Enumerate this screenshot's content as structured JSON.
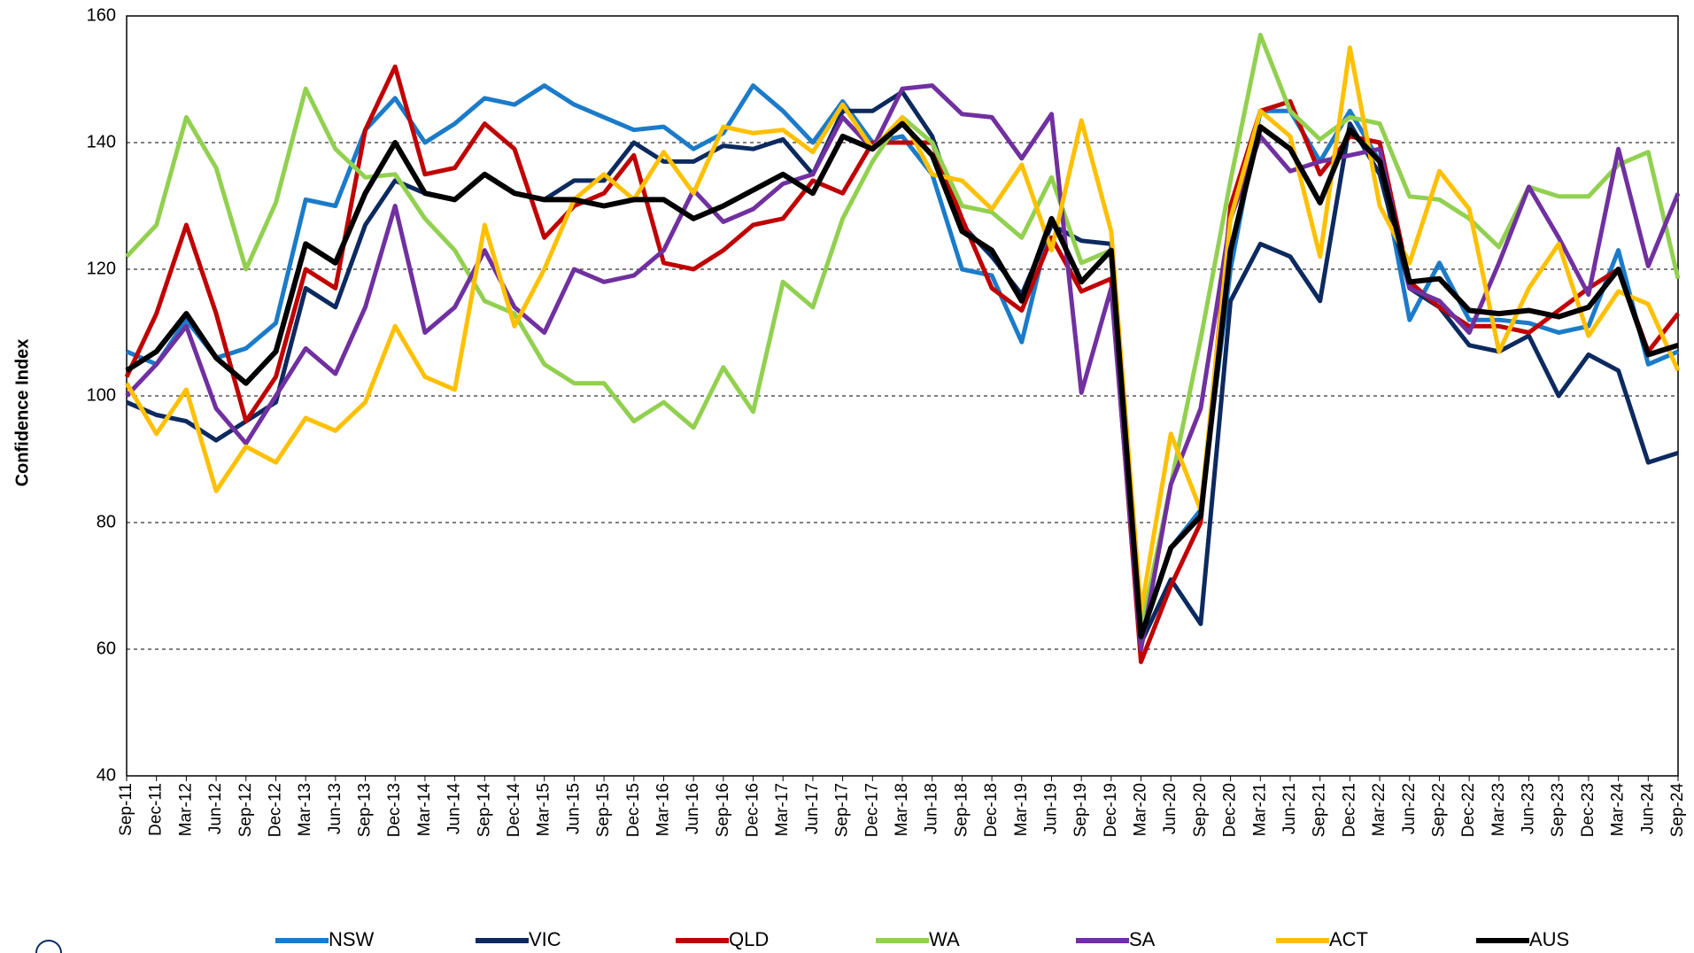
{
  "chart_data": {
    "type": "line",
    "y_label": "Confidence Index",
    "categories": [
      "Sep-11",
      "Dec-11",
      "Mar-12",
      "Jun-12",
      "Sep-12",
      "Dec-12",
      "Mar-13",
      "Jun-13",
      "Sep-13",
      "Dec-13",
      "Mar-14",
      "Jun-14",
      "Sep-14",
      "Dec-14",
      "Mar-15",
      "Jun-15",
      "Sep-15",
      "Dec-15",
      "Mar-16",
      "Jun-16",
      "Sep-16",
      "Dec-16",
      "Mar-17",
      "Jun-17",
      "Sep-17",
      "Dec-17",
      "Mar-18",
      "Jun-18",
      "Sep-18",
      "Dec-18",
      "Mar-19",
      "Jun-19",
      "Sep-19",
      "Dec-19",
      "Mar-20",
      "Jun-20",
      "Sep-20",
      "Dec-20",
      "Mar-21",
      "Jun-21",
      "Sep-21",
      "Dec-21",
      "Mar-22",
      "Jun-22",
      "Sep-22",
      "Dec-22",
      "Mar-23",
      "Jun-23",
      "Sep-23",
      "Dec-23",
      "Mar-24",
      "Jun-24",
      "Sep-24"
    ],
    "series": [
      {
        "name": "NSW",
        "color": "#1b7bc9",
        "values": [
          107,
          105,
          112,
          106,
          107.5,
          111.5,
          131,
          130,
          142,
          147,
          140,
          143,
          147,
          146,
          149,
          146,
          144,
          142,
          142.5,
          139,
          141.5,
          149,
          145,
          140,
          146.5,
          140,
          141,
          135,
          120,
          119,
          108.5,
          128,
          118,
          123,
          62,
          76,
          82,
          120,
          145,
          145,
          137,
          145,
          137,
          112,
          121,
          112,
          112,
          111.5,
          110,
          111,
          123,
          105,
          107
        ]
      },
      {
        "name": "VIC",
        "color": "#0c2a5f",
        "values": [
          99,
          97,
          96,
          93,
          96,
          99,
          117,
          114,
          127,
          134,
          132,
          131,
          135,
          132,
          131,
          134,
          134,
          140,
          137,
          137,
          139.5,
          139,
          140.5,
          135,
          145,
          145,
          148,
          141,
          127,
          122,
          116,
          127,
          124.5,
          124,
          61,
          71,
          64,
          115,
          124,
          122,
          115,
          143,
          135,
          117,
          114,
          108,
          107,
          109.5,
          100,
          106.5,
          104,
          89.5,
          91
        ]
      },
      {
        "name": "QLD",
        "color": "#c00000",
        "values": [
          103,
          113,
          127,
          113,
          96,
          103,
          120,
          117,
          142,
          152,
          135,
          136,
          143,
          139,
          125,
          130,
          132,
          138,
          121,
          120,
          123,
          127,
          128,
          134,
          132,
          140,
          140,
          140,
          128,
          117,
          113.5,
          125,
          116.5,
          118.5,
          58,
          70,
          80,
          130,
          145,
          146.5,
          135,
          141,
          140,
          118,
          114,
          111,
          111,
          110,
          113.5,
          117,
          120,
          107,
          113
        ]
      },
      {
        "name": "WA",
        "color": "#92d050",
        "values": [
          122,
          127,
          144,
          136,
          120,
          130.5,
          148.5,
          139,
          134.5,
          135,
          128,
          123,
          115,
          113,
          105,
          102,
          102,
          96,
          99,
          95,
          104.5,
          97.5,
          118,
          114,
          128,
          137,
          144,
          140,
          130,
          129,
          125,
          134.5,
          121,
          123,
          63,
          86,
          109,
          134,
          157,
          145,
          140.5,
          144,
          143,
          131.5,
          131,
          128,
          123.5,
          133,
          131.5,
          131.5,
          136.5,
          138.5,
          118.5
        ]
      },
      {
        "name": "SA",
        "color": "#7030a0",
        "values": [
          100,
          105,
          111,
          98,
          92.5,
          100,
          107.5,
          103.5,
          114,
          130,
          110,
          114,
          123,
          114,
          110,
          120,
          118,
          119,
          123,
          132.5,
          127.5,
          129.5,
          133.5,
          135,
          144,
          139,
          148.5,
          149,
          144.5,
          144,
          137.5,
          144.5,
          100.5,
          117,
          60,
          86,
          98,
          128,
          141,
          135.5,
          137,
          138,
          139,
          117,
          115,
          110,
          121,
          133,
          125,
          116,
          139,
          120.5,
          132
        ]
      },
      {
        "name": "ACT",
        "color": "#ffc000",
        "values": [
          102,
          94,
          101,
          85,
          92,
          89.5,
          96.5,
          94.5,
          99,
          111,
          103,
          101,
          127,
          111,
          120,
          131,
          135,
          131,
          138.5,
          132,
          142.5,
          141.5,
          142,
          138.5,
          146,
          139,
          144,
          135,
          134,
          129.5,
          136.5,
          123,
          143.5,
          126,
          66,
          94,
          82,
          128,
          145,
          141,
          122,
          155,
          130,
          121,
          135.5,
          129.5,
          107,
          117,
          124,
          109.5,
          116.5,
          114.5,
          104
        ]
      },
      {
        "name": "AUS",
        "color": "#000000",
        "values": [
          104,
          107,
          113,
          106,
          102,
          107,
          124,
          121,
          132,
          140,
          132,
          131,
          135,
          132,
          131,
          131,
          130,
          131,
          131,
          128,
          130,
          132.5,
          135,
          132,
          141,
          139,
          143,
          138,
          126,
          123,
          115,
          128,
          118,
          123,
          62,
          76,
          81,
          123,
          142.5,
          139,
          130.5,
          142,
          137,
          118,
          118.5,
          113.5,
          113,
          113.5,
          112.5,
          114,
          120,
          106.5,
          108
        ]
      }
    ],
    "ylim": [
      40,
      160
    ],
    "yticks": [
      40,
      60,
      80,
      100,
      120,
      140,
      160
    ],
    "grid": true
  }
}
